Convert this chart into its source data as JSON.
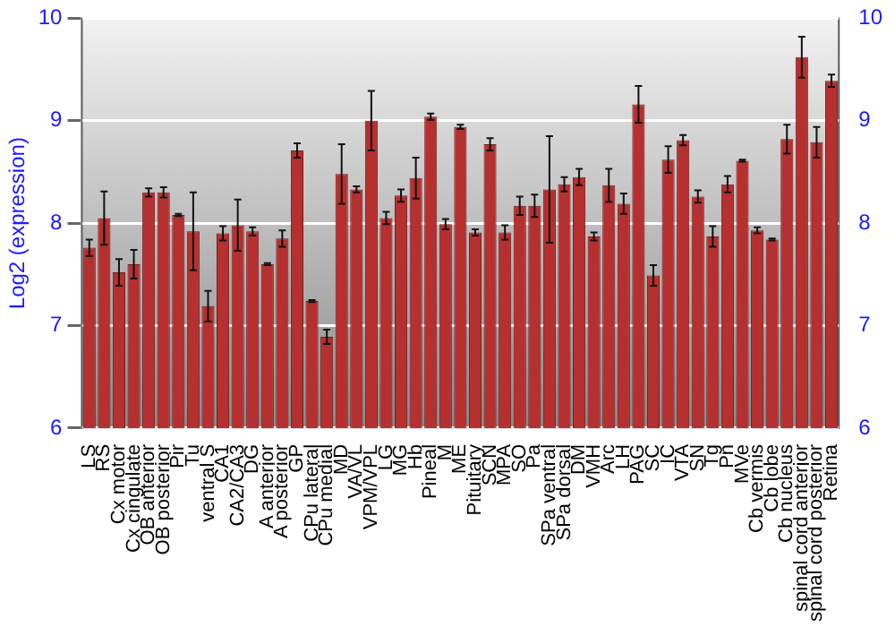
{
  "chart_data": {
    "type": "bar",
    "ylabel": "Log2 (expression)",
    "categories": [
      "LS",
      "RS",
      "Cx motor",
      "Cx cingulate",
      "OB anterior",
      "OB posterior",
      "Pir",
      "Tu",
      "ventral S",
      "CA1",
      "CA2/CA3",
      "DG",
      "A anterior",
      "A posterior",
      "GP",
      "CPu lateral",
      "CPu medial",
      "MD",
      "VA/VL",
      "VPM/VPL",
      "LG",
      "MG",
      "Hb",
      "Pineal",
      "M",
      "ME",
      "Pituitary",
      "SCN",
      "MPA",
      "SO",
      "Pa",
      "SPa ventral",
      "SPa dorsal",
      "DM",
      "VMH",
      "Arc",
      "LH",
      "PAG",
      "SC",
      "IC",
      "VTA",
      "SN",
      "Tg",
      "Pn",
      "MVe",
      "Cb vermis",
      "Cb lobe",
      "Cb nucleus",
      "spinal cord anterior",
      "spinal cord posterior",
      "Retina"
    ],
    "values": [
      7.76,
      8.05,
      7.52,
      7.6,
      8.3,
      8.3,
      8.08,
      7.92,
      7.19,
      7.9,
      7.98,
      7.92,
      7.6,
      7.85,
      8.71,
      7.24,
      6.89,
      8.48,
      8.33,
      9.0,
      8.05,
      8.27,
      8.44,
      9.04,
      7.99,
      8.94,
      7.91,
      8.77,
      7.91,
      8.17,
      8.17,
      8.33,
      8.38,
      8.45,
      7.87,
      8.37,
      8.19,
      9.16,
      7.49,
      8.62,
      8.81,
      8.26,
      7.87,
      8.38,
      8.61,
      7.93,
      7.84,
      8.82,
      9.62,
      8.79,
      9.39
    ],
    "errors": [
      0.08,
      0.26,
      0.13,
      0.14,
      0.04,
      0.05,
      0.01,
      0.38,
      0.15,
      0.07,
      0.25,
      0.04,
      0.01,
      0.08,
      0.07,
      0.01,
      0.07,
      0.29,
      0.03,
      0.29,
      0.06,
      0.06,
      0.2,
      0.03,
      0.05,
      0.02,
      0.03,
      0.06,
      0.07,
      0.09,
      0.11,
      0.52,
      0.07,
      0.08,
      0.04,
      0.16,
      0.1,
      0.18,
      0.1,
      0.13,
      0.05,
      0.06,
      0.1,
      0.08,
      0.01,
      0.03,
      0.01,
      0.14,
      0.2,
      0.15,
      0.06
    ],
    "color": "#b5302f",
    "ylim": [
      6,
      10
    ],
    "yticks": [
      6,
      7,
      8,
      9,
      10
    ],
    "y2lim": [
      6,
      10
    ],
    "y2ticks": [
      6,
      7,
      8,
      9,
      10
    ],
    "grid": "y",
    "legend": false
  }
}
